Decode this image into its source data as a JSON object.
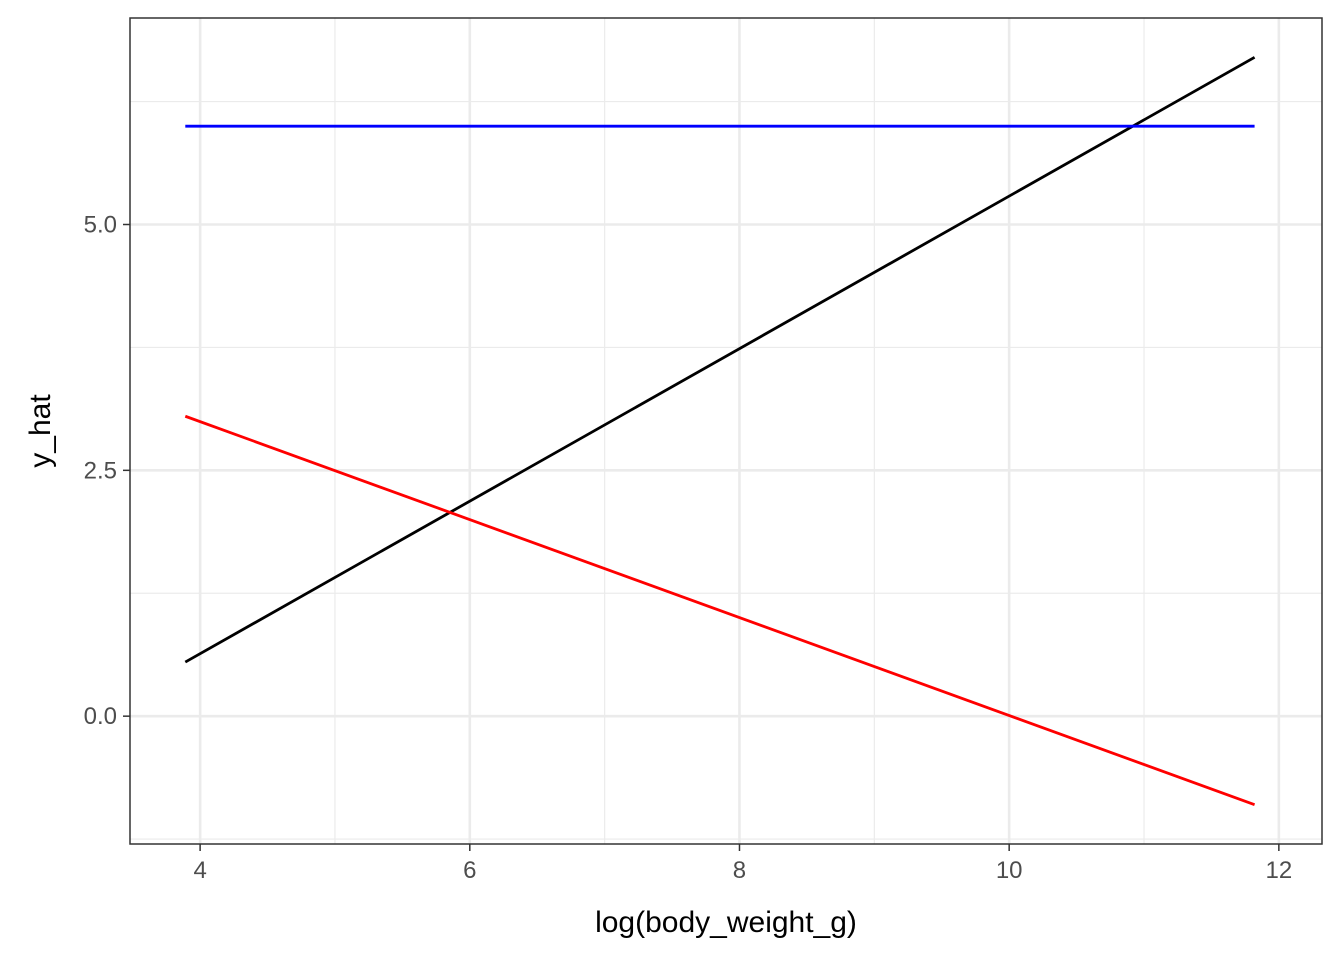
{
  "chart_data": {
    "type": "line",
    "title": "",
    "xlabel": "log(body_weight_g)",
    "ylabel": "y_hat",
    "xlim": [
      3.48,
      12.32
    ],
    "ylim": [
      -1.3,
      7.1
    ],
    "x_ticks": [
      4,
      6,
      8,
      10,
      12
    ],
    "x_tick_labels": [
      "4",
      "6",
      "8",
      "10",
      "12"
    ],
    "x_minor_ticks": [
      5,
      7,
      9,
      11
    ],
    "y_ticks": [
      0,
      2.5,
      5
    ],
    "y_tick_labels": [
      "0.0",
      "2.5",
      "5.0"
    ],
    "y_minor_ticks": [
      -1.25,
      1.25,
      3.75,
      6.25
    ],
    "grid": true,
    "legend": "none",
    "series": [
      {
        "color": "#000000",
        "x": [
          3.89,
          11.82
        ],
        "y": [
          0.55,
          6.7
        ]
      },
      {
        "color": "#0000ff",
        "x": [
          3.89,
          11.82
        ],
        "y": [
          6.0,
          6.0
        ]
      },
      {
        "color": "#ff0000",
        "x": [
          3.89,
          11.82
        ],
        "y": [
          3.05,
          -0.9
        ]
      }
    ]
  }
}
